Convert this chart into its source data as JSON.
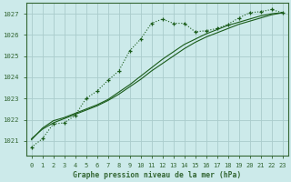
{
  "title": "Graphe pression niveau de la mer (hPa)",
  "bg_color": "#cceaea",
  "grid_color": "#aacccc",
  "line_color": "#1a5c1a",
  "spine_color": "#336633",
  "ylim": [
    1020.3,
    1027.5
  ],
  "xlim": [
    -0.5,
    23.5
  ],
  "yticks": [
    1021,
    1022,
    1023,
    1024,
    1025,
    1026,
    1027
  ],
  "xticks": [
    0,
    1,
    2,
    3,
    4,
    5,
    6,
    7,
    8,
    9,
    10,
    11,
    12,
    13,
    14,
    15,
    16,
    17,
    18,
    19,
    20,
    21,
    22,
    23
  ],
  "series1_x": [
    0,
    1,
    2,
    3,
    4,
    5,
    6,
    7,
    8,
    9,
    10,
    11,
    12,
    13,
    14,
    15,
    16,
    17,
    18,
    19,
    20,
    21,
    22,
    23
  ],
  "series1_y": [
    1020.7,
    1021.1,
    1021.8,
    1021.85,
    1022.2,
    1023.0,
    1023.35,
    1023.85,
    1024.3,
    1025.25,
    1025.8,
    1026.55,
    1026.75,
    1026.55,
    1026.55,
    1026.15,
    1026.2,
    1026.3,
    1026.5,
    1026.8,
    1027.05,
    1027.1,
    1027.2,
    1027.05
  ],
  "series2_x": [
    0,
    1,
    2,
    3,
    4,
    5,
    6,
    7,
    8,
    9,
    10,
    11,
    12,
    13,
    14,
    15,
    16,
    17,
    18,
    19,
    20,
    21,
    22,
    23
  ],
  "series2_y": [
    1021.1,
    1021.55,
    1021.85,
    1022.05,
    1022.25,
    1022.45,
    1022.65,
    1022.9,
    1023.2,
    1023.55,
    1023.9,
    1024.3,
    1024.65,
    1025.0,
    1025.35,
    1025.65,
    1025.9,
    1026.1,
    1026.3,
    1026.5,
    1026.65,
    1026.8,
    1026.95,
    1027.05
  ],
  "series3_x": [
    0,
    1,
    2,
    3,
    4,
    5,
    6,
    7,
    8,
    9,
    10,
    11,
    12,
    13,
    14,
    15,
    16,
    17,
    18,
    19,
    20,
    21,
    22,
    23
  ],
  "series3_y": [
    1021.05,
    1021.6,
    1021.95,
    1022.1,
    1022.3,
    1022.5,
    1022.7,
    1022.95,
    1023.3,
    1023.65,
    1024.05,
    1024.45,
    1024.85,
    1025.2,
    1025.55,
    1025.8,
    1026.05,
    1026.25,
    1026.45,
    1026.6,
    1026.75,
    1026.9,
    1027.0,
    1027.05
  ]
}
